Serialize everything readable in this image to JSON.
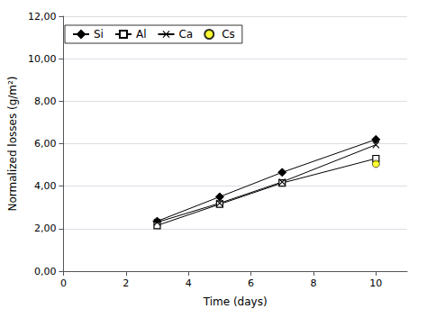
{
  "chart_data": {
    "type": "line",
    "xlabel": "Time (days)",
    "ylabel": "Normalized losses (g/m²)",
    "series": [
      {
        "name": "Si",
        "x": [
          3,
          5,
          7,
          10
        ],
        "values": [
          2.35,
          3.5,
          4.65,
          6.2
        ],
        "color": "#000000",
        "marker": "diamond",
        "line_style": "solid"
      },
      {
        "name": "Al",
        "x": [
          3,
          5,
          7,
          10
        ],
        "values": [
          2.15,
          3.15,
          4.15,
          5.3
        ],
        "color": "#000000",
        "marker": "open_square",
        "line_style": "solid"
      },
      {
        "name": "Ca",
        "x": [
          3,
          5,
          7,
          10
        ],
        "values": [
          2.3,
          3.2,
          4.2,
          5.95
        ],
        "color": "#000000",
        "marker": "x",
        "line_style": "solid"
      },
      {
        "name": "Cs",
        "x": [
          10
        ],
        "values": [
          5.05
        ],
        "color": "#ffff00",
        "marker": "circle",
        "line_style": "none"
      }
    ],
    "xlim": [
      0,
      11
    ],
    "xticks": [
      0,
      2,
      4,
      6,
      8,
      10
    ],
    "ylim": [
      0,
      12
    ],
    "yticks": [
      {
        "value": 0,
        "label": "0,00"
      },
      {
        "value": 2,
        "label": "2,00"
      },
      {
        "value": 4,
        "label": "4,00"
      },
      {
        "value": 6,
        "label": "6,00"
      },
      {
        "value": 8,
        "label": "8,00"
      },
      {
        "value": 10,
        "label": "10,00"
      },
      {
        "value": 12,
        "label": "12,00"
      }
    ],
    "grid": "y",
    "legend": "upper left"
  }
}
